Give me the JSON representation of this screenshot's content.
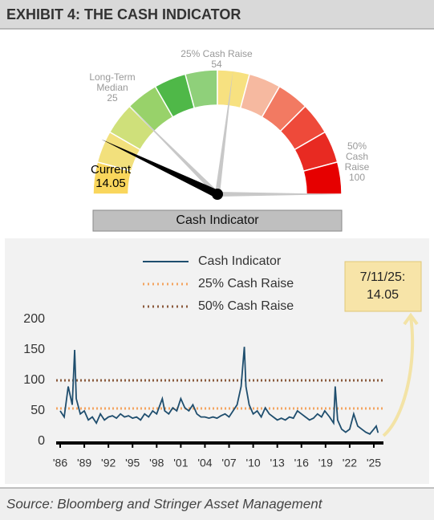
{
  "header": {
    "title": "EXHIBIT 4: THE CASH INDICATOR"
  },
  "chart_data": [
    {
      "type": "gauge",
      "ylim": [
        0,
        100
      ],
      "current": {
        "name": "Current",
        "value": 14.05
      },
      "markers": [
        {
          "name": "Long-Term Median",
          "value": 25
        },
        {
          "name": "25% Cash Raise",
          "value": 54
        },
        {
          "name": "50% Cash Raise",
          "value": 100
        }
      ],
      "label": "Cash Indicator"
    },
    {
      "type": "line",
      "x": [
        1986.0,
        1986.5,
        1987.0,
        1987.5,
        1987.8,
        1988.0,
        1988.5,
        1989.0,
        1989.5,
        1990.0,
        1990.5,
        1991.0,
        1991.5,
        1992.0,
        1992.5,
        1993.0,
        1993.5,
        1994.0,
        1994.5,
        1995.0,
        1995.5,
        1996.0,
        1996.5,
        1997.0,
        1997.5,
        1998.0,
        1998.7,
        1999.0,
        1999.5,
        2000.0,
        2000.5,
        2001.0,
        2001.5,
        2002.0,
        2002.5,
        2003.0,
        2003.5,
        2004.0,
        2004.5,
        2005.0,
        2005.5,
        2006.0,
        2006.5,
        2007.0,
        2007.5,
        2008.0,
        2008.5,
        2008.9,
        2009.1,
        2009.5,
        2010.0,
        2010.5,
        2011.0,
        2011.5,
        2012.0,
        2012.5,
        2013.0,
        2013.5,
        2014.0,
        2014.5,
        2015.0,
        2015.5,
        2016.0,
        2016.5,
        2017.0,
        2017.5,
        2018.0,
        2018.5,
        2018.9,
        2019.5,
        2020.0,
        2020.2,
        2020.5,
        2021.0,
        2021.5,
        2022.0,
        2022.5,
        2023.0,
        2023.5,
        2024.0,
        2024.5,
        2025.0,
        2025.3,
        2025.53
      ],
      "series": [
        {
          "name": "Cash Indicator",
          "color": "#1f4e6e",
          "values": [
            50,
            40,
            90,
            60,
            150,
            70,
            45,
            50,
            35,
            40,
            30,
            45,
            35,
            40,
            42,
            38,
            45,
            40,
            42,
            38,
            40,
            35,
            45,
            40,
            50,
            45,
            70,
            50,
            45,
            55,
            50,
            70,
            55,
            50,
            60,
            45,
            40,
            40,
            38,
            40,
            38,
            42,
            45,
            40,
            50,
            60,
            90,
            155,
            90,
            60,
            45,
            50,
            40,
            55,
            45,
            40,
            35,
            38,
            35,
            40,
            38,
            50,
            45,
            40,
            35,
            38,
            45,
            40,
            50,
            40,
            30,
            90,
            35,
            20,
            15,
            20,
            45,
            25,
            20,
            15,
            12,
            20,
            25,
            14.05
          ]
        }
      ],
      "reference_lines": [
        {
          "name": "25% Cash Raise",
          "value": 54,
          "color": "#f4a460"
        },
        {
          "name": "50% Cash Raise",
          "value": 100,
          "color": "#8b5a3c"
        }
      ],
      "xlim": [
        1985.5,
        2026.2
      ],
      "xticks": [
        {
          "value": 1986,
          "label": "'86"
        },
        {
          "value": 1989,
          "label": "'89"
        },
        {
          "value": 1992,
          "label": "'92"
        },
        {
          "value": 1995,
          "label": "'95"
        },
        {
          "value": 1998,
          "label": "'98"
        },
        {
          "value": 2001,
          "label": "'01"
        },
        {
          "value": 2004,
          "label": "'04"
        },
        {
          "value": 2007,
          "label": "'07"
        },
        {
          "value": 2010,
          "label": "'10"
        },
        {
          "value": 2013,
          "label": "'13"
        },
        {
          "value": 2016,
          "label": "'16"
        },
        {
          "value": 2019,
          "label": "'19"
        },
        {
          "value": 2022,
          "label": "'22"
        },
        {
          "value": 2025,
          "label": "'25"
        }
      ],
      "ylim": [
        0,
        200
      ],
      "yticks": [
        0,
        50,
        100,
        150,
        200
      ],
      "annotation": {
        "date": "7/11/25:",
        "value": 14.05
      }
    }
  ],
  "source": "Source: Bloomberg and Stringer Asset Management"
}
